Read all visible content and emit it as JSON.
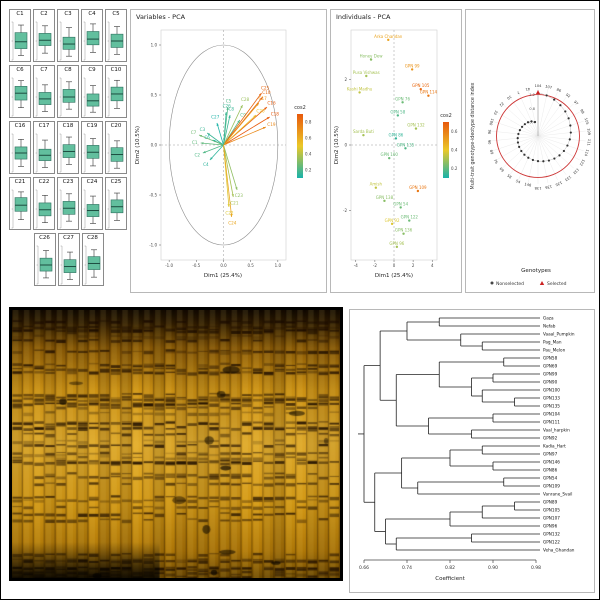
{
  "figure": {
    "panel_titles": {
      "variables": "Variables - PCA",
      "individuals": "Individuals - PCA"
    }
  },
  "gel": {
    "lanes": 30,
    "band_rows": 46,
    "seed": 9
  },
  "chart_data": [
    {
      "id": "trait-boxplots",
      "type": "boxplot-grid",
      "box_color": "#62bf9e",
      "box_stroke": "#2e6f5e",
      "rows": [
        [
          "C1",
          "C2",
          "C3",
          "C4",
          "C5"
        ],
        [
          "C6",
          "C7",
          "C8",
          "C9",
          "C10"
        ],
        [
          "C16",
          "C17",
          "C18",
          "C19",
          "C20"
        ],
        [
          "C21",
          "C22",
          "C23",
          "C24",
          "C25"
        ],
        [
          "C26",
          "C27",
          "C28"
        ]
      ],
      "boxes": {
        "C1": {
          "lo": 0.12,
          "q1": 0.3,
          "med": 0.48,
          "q3": 0.72,
          "hi": 0.92
        },
        "C2": {
          "lo": 0.18,
          "q1": 0.38,
          "med": 0.52,
          "q3": 0.7,
          "hi": 0.9
        },
        "C3": {
          "lo": 0.1,
          "q1": 0.28,
          "med": 0.42,
          "q3": 0.6,
          "hi": 0.85
        },
        "C4": {
          "lo": 0.2,
          "q1": 0.4,
          "med": 0.55,
          "q3": 0.75,
          "hi": 0.95
        },
        "C5": {
          "lo": 0.15,
          "q1": 0.33,
          "med": 0.5,
          "q3": 0.68,
          "hi": 0.88
        },
        "C6": {
          "lo": 0.22,
          "q1": 0.42,
          "med": 0.6,
          "q3": 0.78,
          "hi": 0.93
        },
        "C7": {
          "lo": 0.12,
          "q1": 0.3,
          "med": 0.45,
          "q3": 0.62,
          "hi": 0.82
        },
        "C8": {
          "lo": 0.18,
          "q1": 0.36,
          "med": 0.5,
          "q3": 0.7,
          "hi": 0.9
        },
        "C9": {
          "lo": 0.1,
          "q1": 0.26,
          "med": 0.4,
          "q3": 0.58,
          "hi": 0.8
        },
        "C10": {
          "lo": 0.2,
          "q1": 0.4,
          "med": 0.58,
          "q3": 0.76,
          "hi": 0.94
        },
        "C16": {
          "lo": 0.15,
          "q1": 0.34,
          "med": 0.5,
          "q3": 0.66,
          "hi": 0.86
        },
        "C17": {
          "lo": 0.12,
          "q1": 0.3,
          "med": 0.44,
          "q3": 0.6,
          "hi": 0.84
        },
        "C18": {
          "lo": 0.2,
          "q1": 0.38,
          "med": 0.54,
          "q3": 0.72,
          "hi": 0.92
        },
        "C19": {
          "lo": 0.16,
          "q1": 0.36,
          "med": 0.52,
          "q3": 0.7,
          "hi": 0.88
        },
        "C20": {
          "lo": 0.1,
          "q1": 0.28,
          "med": 0.46,
          "q3": 0.64,
          "hi": 0.82
        },
        "C21": {
          "lo": 0.22,
          "q1": 0.44,
          "med": 0.6,
          "q3": 0.8,
          "hi": 0.95
        },
        "C22": {
          "lo": 0.14,
          "q1": 0.32,
          "med": 0.48,
          "q3": 0.66,
          "hi": 0.86
        },
        "C23": {
          "lo": 0.18,
          "q1": 0.36,
          "med": 0.52,
          "q3": 0.7,
          "hi": 0.9
        },
        "C24": {
          "lo": 0.12,
          "q1": 0.3,
          "med": 0.46,
          "q3": 0.62,
          "hi": 0.84
        },
        "C25": {
          "lo": 0.2,
          "q1": 0.4,
          "med": 0.56,
          "q3": 0.74,
          "hi": 0.92
        },
        "C26": {
          "lo": 0.16,
          "q1": 0.34,
          "med": 0.5,
          "q3": 0.68,
          "hi": 0.88
        },
        "C27": {
          "lo": 0.12,
          "q1": 0.3,
          "med": 0.46,
          "q3": 0.64,
          "hi": 0.84
        },
        "C28": {
          "lo": 0.18,
          "q1": 0.38,
          "med": 0.54,
          "q3": 0.72,
          "hi": 0.9
        }
      }
    },
    {
      "id": "variables-pca",
      "type": "pca-variables",
      "title": "Variables - PCA",
      "xlabel": "Dim1 (25.4%)",
      "ylabel": "Dim2 (10.5%)",
      "xlim": [
        -1.15,
        1.15
      ],
      "ylim": [
        -1.15,
        1.15
      ],
      "xticks": [
        "-1.0",
        "-0.5",
        "0.0",
        "0.5",
        "1.0"
      ],
      "yticks": [
        "-1.0",
        "-0.5",
        "0.0",
        "0.5",
        "1.0"
      ],
      "legend": {
        "title": "cos2",
        "ticks": [
          "0.8",
          "0.6",
          "0.4",
          "0.2"
        ],
        "colors_high_to_low": [
          "#e8590c",
          "#ebc828",
          "#18b2aa"
        ]
      },
      "variables": [
        {
          "name": "C1",
          "x": -0.42,
          "y": 0.02,
          "cos2": 0.18
        },
        {
          "name": "C2",
          "x": -0.38,
          "y": -0.08,
          "cos2": 0.15
        },
        {
          "name": "C3",
          "x": -0.3,
          "y": 0.12,
          "cos2": 0.11
        },
        {
          "name": "C4",
          "x": -0.25,
          "y": -0.15,
          "cos2": 0.09
        },
        {
          "name": "C5",
          "x": 0.08,
          "y": 0.38,
          "cos2": 0.15
        },
        {
          "name": "C6",
          "x": -0.2,
          "y": 0.05,
          "cos2": 0.05
        },
        {
          "name": "C7",
          "x": -0.45,
          "y": 0.1,
          "cos2": 0.21
        },
        {
          "name": "C8",
          "x": 0.12,
          "y": 0.3,
          "cos2": 0.11
        },
        {
          "name": "C9",
          "x": 0.3,
          "y": 0.25,
          "cos2": 0.15
        },
        {
          "name": "C10",
          "x": 0.72,
          "y": 0.48,
          "cos2": 0.75
        },
        {
          "name": "C16",
          "x": 0.8,
          "y": 0.38,
          "cos2": 0.79
        },
        {
          "name": "C17",
          "x": 0.65,
          "y": 0.42,
          "cos2": 0.6
        },
        {
          "name": "C18",
          "x": 0.85,
          "y": 0.28,
          "cos2": 0.8
        },
        {
          "name": "C19",
          "x": 0.78,
          "y": 0.18,
          "cos2": 0.64
        },
        {
          "name": "C20",
          "x": 0.6,
          "y": 0.3,
          "cos2": 0.45
        },
        {
          "name": "C21",
          "x": 0.18,
          "y": -0.52,
          "cos2": 0.3
        },
        {
          "name": "C22",
          "x": 0.1,
          "y": -0.62,
          "cos2": 0.4
        },
        {
          "name": "C23",
          "x": 0.25,
          "y": -0.45,
          "cos2": 0.26
        },
        {
          "name": "C24",
          "x": 0.15,
          "y": -0.72,
          "cos2": 0.54
        },
        {
          "name": "C25",
          "x": 0.7,
          "y": 0.52,
          "cos2": 0.76
        },
        {
          "name": "C26",
          "x": 0.05,
          "y": 0.33,
          "cos2": 0.11
        },
        {
          "name": "C27",
          "x": -0.12,
          "y": 0.22,
          "cos2": 0.06
        },
        {
          "name": "C28",
          "x": 0.35,
          "y": 0.4,
          "cos2": 0.28
        }
      ]
    },
    {
      "id": "individuals-pca",
      "type": "pca-individuals",
      "title": "Individuals - PCA",
      "xlabel": "Dim1 (25.4%)",
      "ylabel": "Dim2 (10.5%)",
      "xlim": [
        -4.5,
        4.5
      ],
      "ylim": [
        -3.5,
        3.5
      ],
      "xticks": [
        "-4",
        "-2",
        "0",
        "2",
        "4"
      ],
      "yticks": [
        "-2",
        "0",
        "2"
      ],
      "legend": {
        "title": "cos2",
        "ticks": [
          "0.6",
          "0.4",
          "0.2"
        ],
        "colors_high_to_low": [
          "#e8590c",
          "#ebc828",
          "#18b2aa"
        ]
      },
      "points": [
        {
          "name": "Arka Chandan",
          "x": -0.6,
          "y": 3.2,
          "cos2": 0.55
        },
        {
          "name": "Honey Dew",
          "x": -2.4,
          "y": 2.6,
          "cos2": 0.25
        },
        {
          "name": "Pusa Vishwas",
          "x": -2.9,
          "y": 2.1,
          "cos2": 0.3
        },
        {
          "name": "Kashi Madhu",
          "x": -3.6,
          "y": 1.6,
          "cos2": 0.35
        },
        {
          "name": "GPN 99",
          "x": 1.9,
          "y": 2.3,
          "cos2": 0.6
        },
        {
          "name": "GPN 105",
          "x": 2.8,
          "y": 1.7,
          "cos2": 0.75
        },
        {
          "name": "GPN 114",
          "x": 3.6,
          "y": 1.5,
          "cos2": 0.7
        },
        {
          "name": "GPN 76",
          "x": 0.9,
          "y": 1.3,
          "cos2": 0.2
        },
        {
          "name": "GPN 58",
          "x": 0.4,
          "y": 0.9,
          "cos2": 0.15
        },
        {
          "name": "GPN 132",
          "x": 2.3,
          "y": 0.5,
          "cos2": 0.3
        },
        {
          "name": "Sarda Buti",
          "x": -3.2,
          "y": 0.3,
          "cos2": 0.3
        },
        {
          "name": "GPN 86",
          "x": 0.2,
          "y": 0.2,
          "cos2": 0.1
        },
        {
          "name": "GPN 135",
          "x": 1.2,
          "y": -0.1,
          "cos2": 0.15
        },
        {
          "name": "GPN 100",
          "x": -0.5,
          "y": -0.4,
          "cos2": 0.2
        },
        {
          "name": "Amish",
          "x": -1.9,
          "y": -1.3,
          "cos2": 0.35
        },
        {
          "name": "GPN 109",
          "x": 2.5,
          "y": -1.4,
          "cos2": 0.7
        },
        {
          "name": "GPN 138",
          "x": -1.0,
          "y": -1.7,
          "cos2": 0.25
        },
        {
          "name": "GPN 54",
          "x": 0.7,
          "y": -1.9,
          "cos2": 0.2
        },
        {
          "name": "GPN 92",
          "x": -0.2,
          "y": -2.4,
          "cos2": 0.4
        },
        {
          "name": "GPN 136",
          "x": 1.0,
          "y": -2.7,
          "cos2": 0.25
        },
        {
          "name": "GPN 122",
          "x": 1.6,
          "y": -2.3,
          "cos2": 0.2
        },
        {
          "name": "GPN 96",
          "x": 0.3,
          "y": -3.1,
          "cos2": 0.3
        }
      ]
    },
    {
      "id": "mgidi-circular",
      "type": "circular-mgidi",
      "ylabel": "Multi-trait genotype-ideotype distance index",
      "xlabel": "Genotypes",
      "rticks": [
        "0.4",
        "0.8",
        "1.2"
      ],
      "cutpoint": 1.22,
      "legend": {
        "nonselected": "Nonselected",
        "selected": "Selected",
        "selected_color": "#cc2222"
      },
      "genotypes": [
        "104",
        "107",
        "86",
        "92",
        "97",
        "99",
        "105",
        "109",
        "111",
        "114",
        "122",
        "132",
        "133",
        "135",
        "136",
        "138",
        "146",
        "54",
        "58",
        "69",
        "76",
        "89",
        "90",
        "96",
        "100",
        "33",
        "22",
        "10",
        "7",
        "41"
      ],
      "values": [
        1.28,
        1.22,
        1.17,
        1.12,
        1.08,
        1.04,
        1.0,
        0.97,
        0.94,
        0.91,
        0.88,
        0.85,
        0.82,
        0.79,
        0.76,
        0.74,
        0.72,
        0.7,
        0.68,
        0.66,
        0.64,
        0.62,
        0.6,
        0.58,
        0.56,
        0.54,
        0.52,
        0.5,
        0.47,
        0.42
      ],
      "selected": [
        "104"
      ]
    },
    {
      "id": "dendrogram",
      "type": "dendrogram",
      "xlabel": "Coefficient",
      "xticks": [
        "0.66",
        "0.74",
        "0.82",
        "0.90",
        "0.98"
      ],
      "xlim": [
        0.66,
        0.98
      ],
      "tree": {
        "h": 0.66,
        "c": [
          {
            "h": 0.69,
            "c": [
              {
                "h": 0.74,
                "c": [
                  {
                    "h": 0.8,
                    "c": [
                      {
                        "l": "Gaza"
                      },
                      {
                        "l": "Nefab"
                      }
                    ]
                  },
                  {
                    "h": 0.84,
                    "c": [
                      {
                        "l": "Vaaal_Pumpkin"
                      },
                      {
                        "h": 0.88,
                        "c": [
                          {
                            "l": "Pag_Man"
                          },
                          {
                            "l": "Pau_Melon"
                          }
                        ]
                      }
                    ]
                  }
                ]
              },
              {
                "h": 0.72,
                "c": [
                  {
                    "h": 0.8,
                    "c": [
                      {
                        "h": 0.92,
                        "c": [
                          {
                            "l": "GPN58"
                          },
                          {
                            "l": "GPN69"
                          }
                        ]
                      },
                      {
                        "h": 0.86,
                        "c": [
                          {
                            "h": 0.9,
                            "c": [
                              {
                                "l": "GPN99"
                              },
                              {
                                "l": "GPN90"
                              }
                            ]
                          },
                          {
                            "h": 0.88,
                            "c": [
                              {
                                "l": "GPN100"
                              },
                              {
                                "h": 0.94,
                                "c": [
                                  {
                                    "l": "GPN133"
                                  },
                                  {
                                    "l": "GPN135"
                                  }
                                ]
                              }
                            ]
                          }
                        ]
                      }
                    ]
                  },
                  {
                    "h": 0.78,
                    "c": [
                      {
                        "h": 0.9,
                        "c": [
                          {
                            "l": "GPN104"
                          },
                          {
                            "l": "GPN111"
                          }
                        ]
                      },
                      {
                        "h": 0.86,
                        "c": [
                          {
                            "l": "Vaal_harpkin"
                          },
                          {
                            "l": "GPN92"
                          }
                        ]
                      }
                    ]
                  }
                ]
              }
            ]
          },
          {
            "h": 0.68,
            "c": [
              {
                "h": 0.73,
                "c": [
                  {
                    "h": 0.82,
                    "c": [
                      {
                        "h": 0.88,
                        "c": [
                          {
                            "l": "Kadia_Hart"
                          },
                          {
                            "l": "GPN97"
                          }
                        ]
                      },
                      {
                        "h": 0.9,
                        "c": [
                          {
                            "l": "GPN146"
                          },
                          {
                            "l": "GPN86"
                          }
                        ]
                      }
                    ]
                  },
                  {
                    "h": 0.76,
                    "c": [
                      {
                        "h": 0.92,
                        "c": [
                          {
                            "l": "GPN54"
                          },
                          {
                            "l": "GPN109"
                          }
                        ]
                      },
                      {
                        "l": "Vanrane_Svail"
                      }
                    ]
                  }
                ]
              },
              {
                "h": 0.7,
                "c": [
                  {
                    "h": 0.82,
                    "c": [
                      {
                        "h": 0.88,
                        "c": [
                          {
                            "h": 0.94,
                            "c": [
                              {
                                "l": "GPN89"
                              },
                              {
                                "l": "GPN105"
                              }
                            ]
                          },
                          {
                            "l": "GPN107"
                          }
                        ]
                      },
                      {
                        "l": "GPN96"
                      }
                    ]
                  },
                  {
                    "h": 0.72,
                    "c": [
                      {
                        "h": 0.86,
                        "c": [
                          {
                            "l": "GPN132"
                          },
                          {
                            "l": "GPN122"
                          }
                        ]
                      },
                      {
                        "l": "Veha_Ghandan"
                      }
                    ]
                  }
                ]
              }
            ]
          }
        ]
      }
    }
  ]
}
